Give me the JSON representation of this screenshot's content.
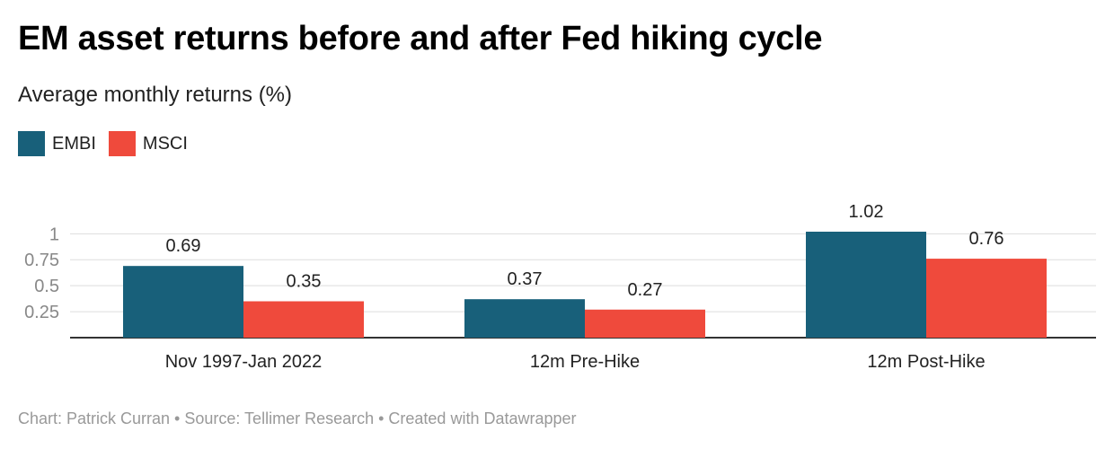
{
  "title": "EM asset returns before and after Fed hiking cycle",
  "subtitle": "Average monthly returns (%)",
  "footer": "Chart: Patrick Curran • Source: Tellimer Research • Created with Datawrapper",
  "chart_data": {
    "type": "bar",
    "title": "EM asset returns before and after Fed hiking cycle",
    "subtitle": "Average monthly returns (%)",
    "xlabel": "",
    "ylabel": "",
    "ylim": [
      0,
      1.02
    ],
    "yticks": [
      0.25,
      0.5,
      0.75,
      1
    ],
    "ytick_labels": [
      "0.25",
      "0.5",
      "0.75",
      "1"
    ],
    "grid": true,
    "legend_position": "top-left",
    "categories": [
      "Nov 1997-Jan 2022",
      "12m Pre-Hike",
      "12m Post-Hike"
    ],
    "series": [
      {
        "name": "EMBI",
        "color": "#18607a",
        "values": [
          0.69,
          0.37,
          1.02
        ],
        "labels": [
          "0.69",
          "0.37",
          "1.02"
        ]
      },
      {
        "name": "MSCI",
        "color": "#ef4a3c",
        "values": [
          0.35,
          0.27,
          0.76
        ],
        "labels": [
          "0.35",
          "0.27",
          "0.76"
        ]
      }
    ]
  }
}
